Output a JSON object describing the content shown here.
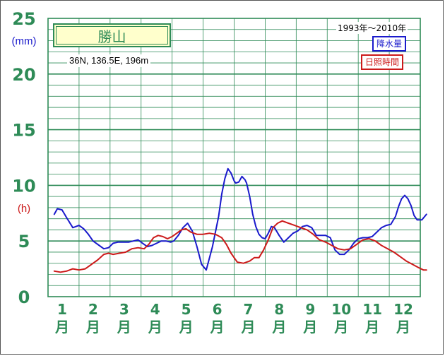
{
  "chart_data": {
    "type": "line",
    "station": "勝山",
    "location_info": "36N, 136.5E, 196m",
    "period": "1993年〜2010年",
    "left_unit": "(mm)",
    "right_unit": "(h)",
    "months": [
      "1",
      "2",
      "3",
      "4",
      "5",
      "6",
      "7",
      "8",
      "9",
      "10",
      "11",
      "12"
    ],
    "month_kanji": "月",
    "y_ticks": [
      0,
      5,
      10,
      15,
      20,
      25
    ],
    "ylim": [
      0,
      25
    ],
    "grid": true,
    "series": [
      {
        "name": "降水量",
        "color": "#1a1acc",
        "x": [
          0.7,
          0.8,
          0.95,
          1.1,
          1.3,
          1.5,
          1.65,
          1.8,
          1.95,
          2.15,
          2.3,
          2.45,
          2.6,
          2.75,
          2.95,
          3.1,
          3.25,
          3.4,
          3.55,
          3.7,
          3.85,
          4.0,
          4.15,
          4.3,
          4.45,
          4.55,
          4.7,
          4.85,
          5.0,
          5.15,
          5.3,
          5.45,
          5.6,
          5.8,
          6.0,
          6.1,
          6.2,
          6.3,
          6.4,
          6.5,
          6.55,
          6.65,
          6.75,
          6.85,
          6.9,
          7.0,
          7.1,
          7.2,
          7.3,
          7.4,
          7.5,
          7.6,
          7.7,
          7.8,
          7.95,
          8.1,
          8.25,
          8.4,
          8.55,
          8.7,
          8.85,
          9.0,
          9.15,
          9.3,
          9.45,
          9.6,
          9.75,
          9.9,
          10.05,
          10.2,
          10.35,
          10.5,
          10.65,
          10.8,
          10.95,
          11.1,
          11.25,
          11.4,
          11.55,
          11.7,
          11.8,
          11.9,
          12.0,
          12.1,
          12.2,
          12.3,
          12.4,
          12.55,
          12.7
        ],
        "values": [
          7.4,
          7.9,
          7.8,
          7.1,
          6.2,
          6.4,
          6.1,
          5.6,
          5.0,
          4.6,
          4.3,
          4.4,
          4.8,
          4.9,
          4.9,
          4.9,
          5.0,
          5.1,
          4.8,
          4.5,
          4.6,
          4.8,
          5.0,
          5.0,
          4.9,
          5.0,
          5.5,
          6.2,
          6.6,
          5.9,
          4.5,
          2.9,
          2.4,
          4.5,
          7.2,
          9.2,
          10.6,
          11.5,
          11.1,
          10.4,
          10.2,
          10.3,
          10.8,
          10.5,
          10.2,
          9.0,
          7.4,
          6.3,
          5.6,
          5.3,
          5.2,
          5.7,
          6.3,
          6.2,
          5.5,
          4.9,
          5.3,
          5.7,
          5.9,
          6.3,
          6.4,
          6.2,
          5.5,
          5.5,
          5.5,
          5.3,
          4.2,
          3.8,
          3.8,
          4.2,
          4.8,
          5.2,
          5.3,
          5.3,
          5.4,
          5.8,
          6.2,
          6.4,
          6.5,
          7.2,
          8.1,
          8.8,
          9.1,
          8.8,
          8.2,
          7.3,
          6.9,
          6.9,
          7.4
        ]
      },
      {
        "name": "日照時間",
        "color": "#cc1a1a",
        "x": [
          0.7,
          0.9,
          1.1,
          1.3,
          1.5,
          1.7,
          1.9,
          2.1,
          2.3,
          2.45,
          2.6,
          2.8,
          3.0,
          3.2,
          3.4,
          3.6,
          3.75,
          3.9,
          4.05,
          4.2,
          4.35,
          4.5,
          4.65,
          4.8,
          4.95,
          5.1,
          5.3,
          5.5,
          5.7,
          5.9,
          6.1,
          6.25,
          6.4,
          6.6,
          6.8,
          7.0,
          7.15,
          7.3,
          7.45,
          7.6,
          7.75,
          7.9,
          8.05,
          8.25,
          8.45,
          8.65,
          8.85,
          9.05,
          9.25,
          9.45,
          9.65,
          9.85,
          10.05,
          10.25,
          10.45,
          10.65,
          10.85,
          11.05,
          11.25,
          11.45,
          11.65,
          11.85,
          12.05,
          12.25,
          12.45,
          12.6,
          12.7
        ],
        "values": [
          2.3,
          2.2,
          2.3,
          2.5,
          2.4,
          2.5,
          2.9,
          3.3,
          3.8,
          3.9,
          3.8,
          3.9,
          4.0,
          4.3,
          4.4,
          4.3,
          4.7,
          5.3,
          5.5,
          5.4,
          5.2,
          5.4,
          5.7,
          6.0,
          6.1,
          5.8,
          5.6,
          5.6,
          5.7,
          5.6,
          5.3,
          4.7,
          3.9,
          3.1,
          3.0,
          3.2,
          3.5,
          3.5,
          4.2,
          5.1,
          6.2,
          6.6,
          6.8,
          6.6,
          6.4,
          6.2,
          6.0,
          5.6,
          5.1,
          4.9,
          4.6,
          4.3,
          4.2,
          4.3,
          4.7,
          5.1,
          5.2,
          5.0,
          4.6,
          4.3,
          4.0,
          3.6,
          3.2,
          2.9,
          2.6,
          2.4,
          2.4
        ]
      }
    ]
  }
}
